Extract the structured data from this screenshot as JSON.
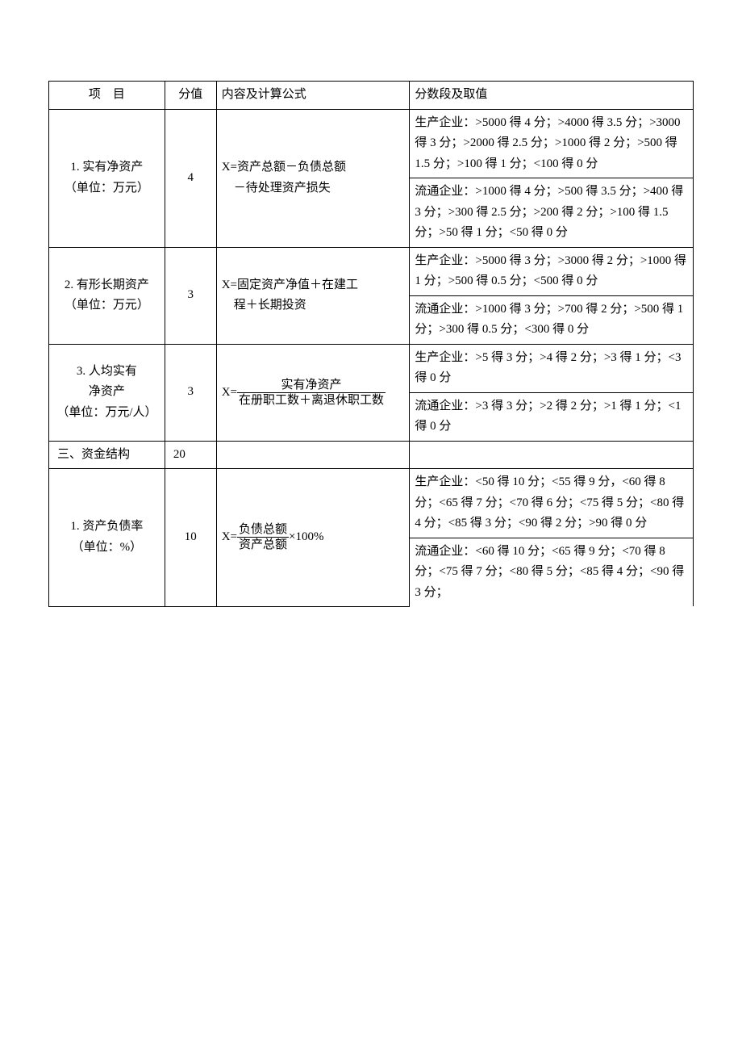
{
  "headers": {
    "item": "项　目",
    "score": "分值",
    "formula": "内容及计算公式",
    "range": "分数段及取值"
  },
  "row1": {
    "item_l1": "1. 实有净资产",
    "item_l2": "（单位：万元）",
    "score": "4",
    "formula_l1": "X=资产总额－负债总额",
    "formula_l2": "　－待处理资产损失",
    "range_a": "生产企业：>5000 得 4 分；>4000 得 3.5 分；>3000 得 3 分；>2000 得 2.5 分；>1000 得 2 分；>500 得 1.5 分；>100 得 1 分；<100 得 0 分",
    "range_b": "流通企业：>1000 得 4 分；>500 得 3.5 分；>400 得 3 分；>300 得 2.5 分；>200 得 2 分；>100 得 1.5 分；>50 得 1 分；<50 得 0 分"
  },
  "row2": {
    "item_l1": "2. 有形长期资产",
    "item_l2": "（单位：万元）",
    "score": "3",
    "formula_l1": "X=固定资产净值＋在建工",
    "formula_l2": "　程＋长期投资",
    "range_a": "生产企业：>5000 得 3 分；>3000 得 2 分；>1000 得 1 分；>500 得 0.5 分；<500 得 0 分",
    "range_b": "流通企业：>1000 得 3 分；>700 得 2 分；>500 得 1 分；>300 得 0.5 分；<300 得 0 分"
  },
  "row3": {
    "item_l1": "3. 人均实有",
    "item_l2": "净资产",
    "item_l3": "（单位：万元/人）",
    "score": "3",
    "formula_prefix": "X=",
    "formula_num": "实有净资产",
    "formula_den": "在册职工数＋离退休职工数",
    "range_a": "生产企业：>5 得 3 分；>4 得 2 分；>3 得 1 分；<3 得 0 分",
    "range_b": "流通企业：>3 得 3 分；>2 得 2 分；>1 得 1 分；<1 得 0 分"
  },
  "section": {
    "title": "三、资金结构",
    "score": "20"
  },
  "row4": {
    "item_l1": "1. 资产负债率",
    "item_l2": "（单位：%）",
    "score": "10",
    "formula_prefix": "X=",
    "formula_num": "负债总额",
    "formula_den": "资产总额",
    "formula_suffix": "×100%",
    "range_a": "生产企业：<50 得 10 分；<55 得 9 分，<60 得 8 分；<65 得 7 分；<70 得 6 分；<75 得 5 分；<80 得 4 分；<85 得 3 分；<90 得 2 分；>90 得 0 分",
    "range_b": "流通企业：<60 得 10 分；<65 得 9 分；<70 得 8 分；<75 得 7 分；<80 得 5 分；<85 得 4 分；<90 得 3 分；"
  }
}
